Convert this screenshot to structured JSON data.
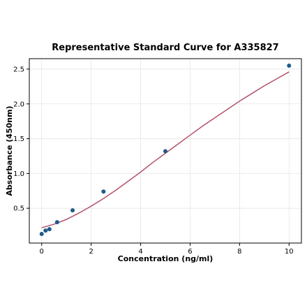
{
  "chart_data": {
    "type": "scatter",
    "title": "Representative Standard Curve for A335827",
    "xlabel": "Concentration (ng/ml)",
    "ylabel": "Absorbance (450nm)",
    "xlim": [
      -0.5,
      10.5
    ],
    "ylim": [
      0.0,
      2.65
    ],
    "xticks": [
      0,
      2,
      4,
      6,
      8,
      10
    ],
    "yticks": [
      0.5,
      1.0,
      1.5,
      2.0,
      2.5
    ],
    "grid": true,
    "colors": {
      "points": "#1f5a8a",
      "curve": "#b5526a"
    },
    "series": [
      {
        "type": "scatter",
        "x": [
          0,
          0.156,
          0.313,
          0.625,
          1.25,
          2.5,
          5,
          10
        ],
        "y": [
          0.13,
          0.18,
          0.2,
          0.3,
          0.47,
          0.74,
          1.32,
          2.55
        ]
      },
      {
        "type": "line",
        "x": [
          0,
          0.5,
          1,
          1.5,
          2,
          2.5,
          3,
          3.5,
          4,
          4.5,
          5,
          5.5,
          6,
          6.5,
          7,
          7.5,
          8,
          8.5,
          9,
          9.5,
          10
        ],
        "y": [
          0.22,
          0.27,
          0.34,
          0.43,
          0.53,
          0.64,
          0.76,
          0.89,
          1.02,
          1.16,
          1.29,
          1.42,
          1.55,
          1.68,
          1.8,
          1.92,
          2.04,
          2.15,
          2.26,
          2.36,
          2.46
        ]
      }
    ]
  }
}
